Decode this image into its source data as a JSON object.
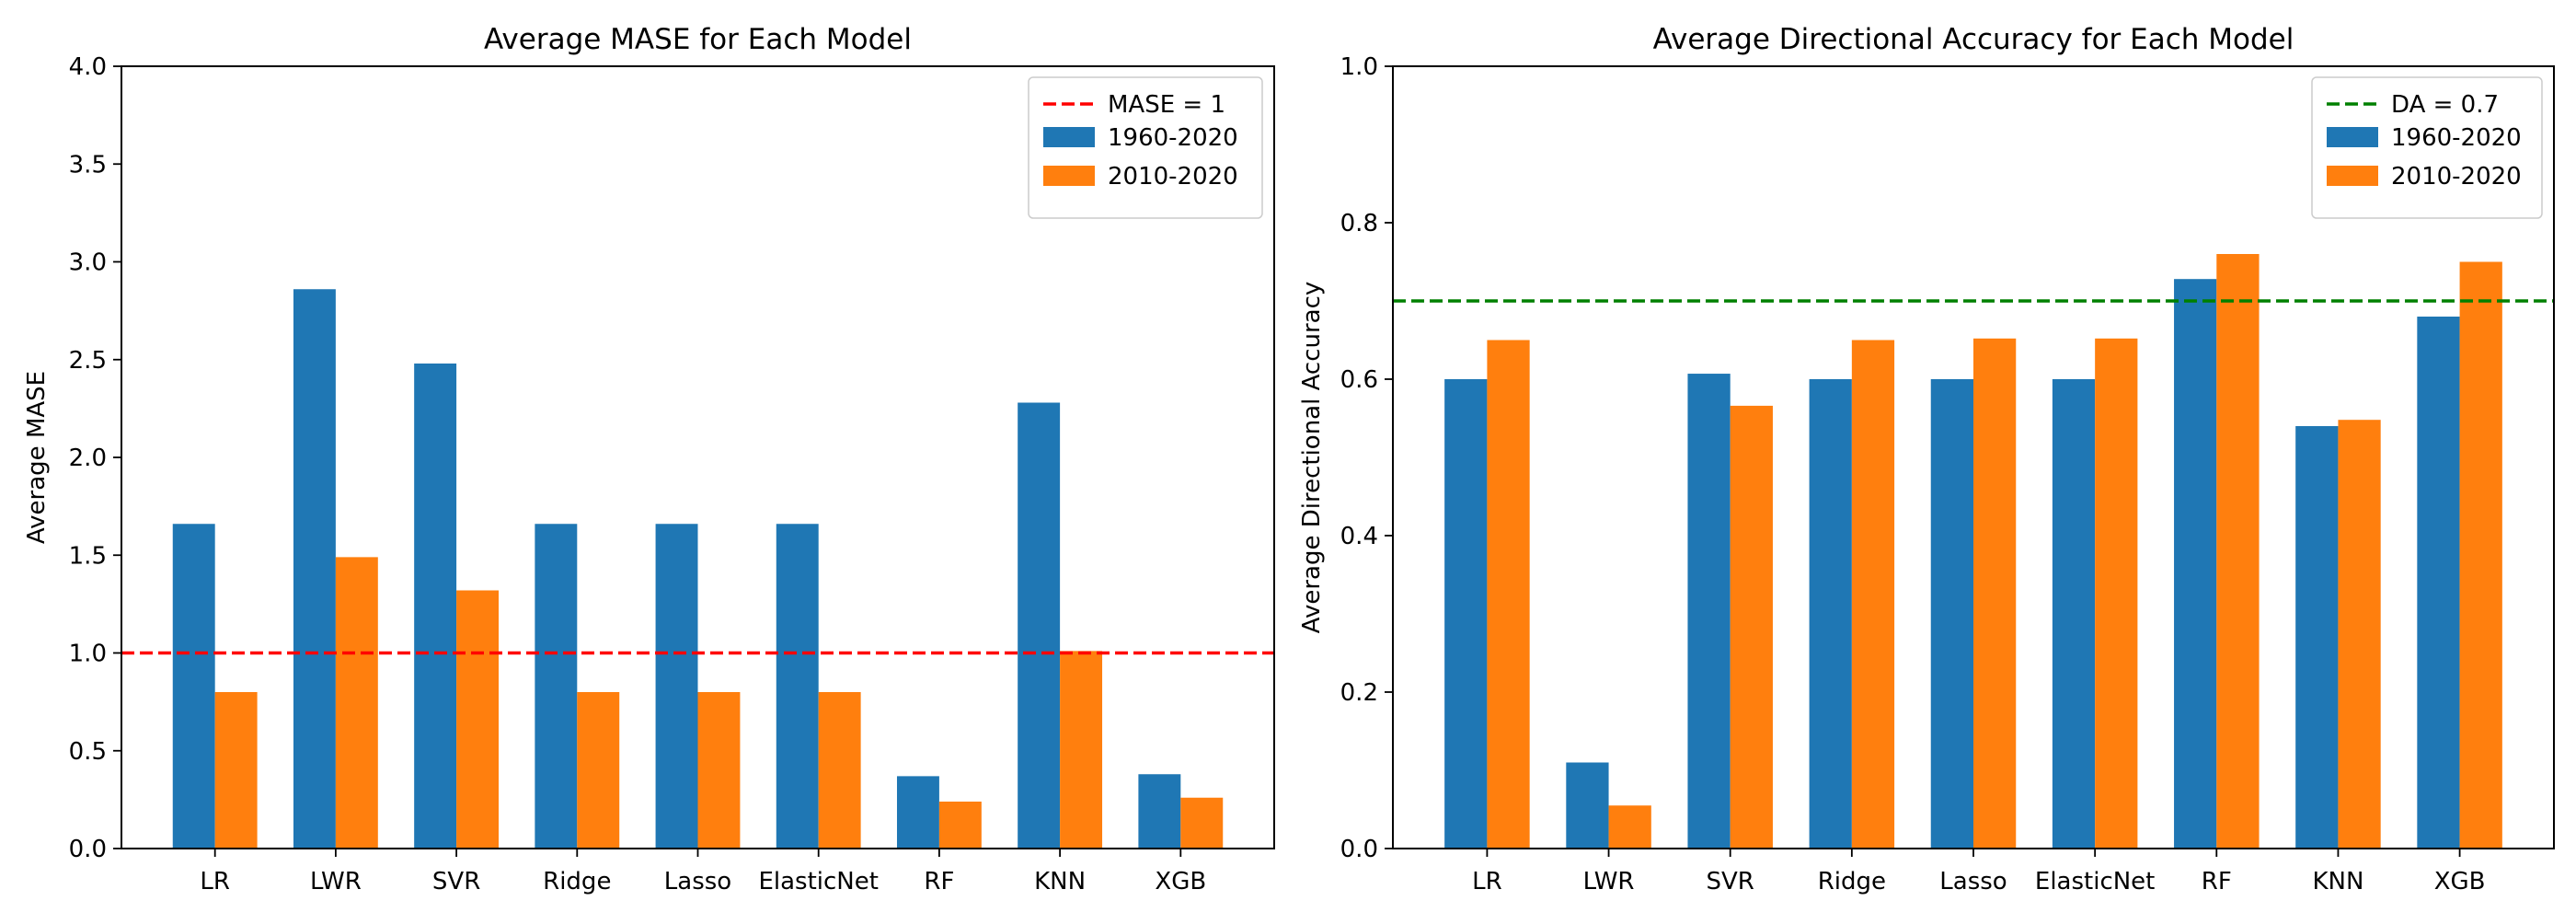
{
  "chart_data": [
    {
      "type": "bar",
      "title": "Average MASE for Each Model",
      "xlabel": "",
      "ylabel": "Average MASE",
      "categories": [
        "LR",
        "LWR",
        "SVR",
        "Ridge",
        "Lasso",
        "ElasticNet",
        "RF",
        "KNN",
        "XGB"
      ],
      "series": [
        {
          "name": "1960-2020",
          "color": "#1f77b4",
          "values": [
            1.66,
            2.86,
            2.48,
            1.66,
            1.66,
            1.66,
            0.37,
            2.28,
            0.38
          ]
        },
        {
          "name": "2010-2020",
          "color": "#ff7f0e",
          "values": [
            0.8,
            1.49,
            1.32,
            0.8,
            0.8,
            0.8,
            0.24,
            1.01,
            0.26
          ]
        }
      ],
      "ylim": [
        0,
        4.0
      ],
      "yticks": [
        0.0,
        0.5,
        1.0,
        1.5,
        2.0,
        2.5,
        3.0,
        3.5,
        4.0
      ],
      "ytick_labels": [
        "0.0",
        "0.5",
        "1.0",
        "1.5",
        "2.0",
        "2.5",
        "3.0",
        "3.5",
        "4.0"
      ],
      "reference_line": {
        "label": "MASE = 1",
        "value": 1.0,
        "color": "#ff0000",
        "style": "dashed"
      },
      "grid": false,
      "legend_position": "top-right"
    },
    {
      "type": "bar",
      "title": "Average Directional Accuracy for Each Model",
      "xlabel": "",
      "ylabel": "Average Directional Accuracy",
      "categories": [
        "LR",
        "LWR",
        "SVR",
        "Ridge",
        "Lasso",
        "ElasticNet",
        "RF",
        "KNN",
        "XGB"
      ],
      "series": [
        {
          "name": "1960-2020",
          "color": "#1f77b4",
          "values": [
            0.6,
            0.11,
            0.607,
            0.6,
            0.6,
            0.6,
            0.728,
            0.54,
            0.68
          ]
        },
        {
          "name": "2010-2020",
          "color": "#ff7f0e",
          "values": [
            0.65,
            0.055,
            0.566,
            0.65,
            0.652,
            0.652,
            0.76,
            0.548,
            0.75
          ]
        }
      ],
      "ylim": [
        0,
        1.0
      ],
      "yticks": [
        0.0,
        0.2,
        0.4,
        0.6,
        0.8,
        1.0
      ],
      "ytick_labels": [
        "0.0",
        "0.2",
        "0.4",
        "0.6",
        "0.8",
        "1.0"
      ],
      "reference_line": {
        "label": "DA = 0.7",
        "value": 0.7,
        "color": "#008000",
        "style": "dashed"
      },
      "grid": false,
      "legend_position": "top-right"
    }
  ]
}
